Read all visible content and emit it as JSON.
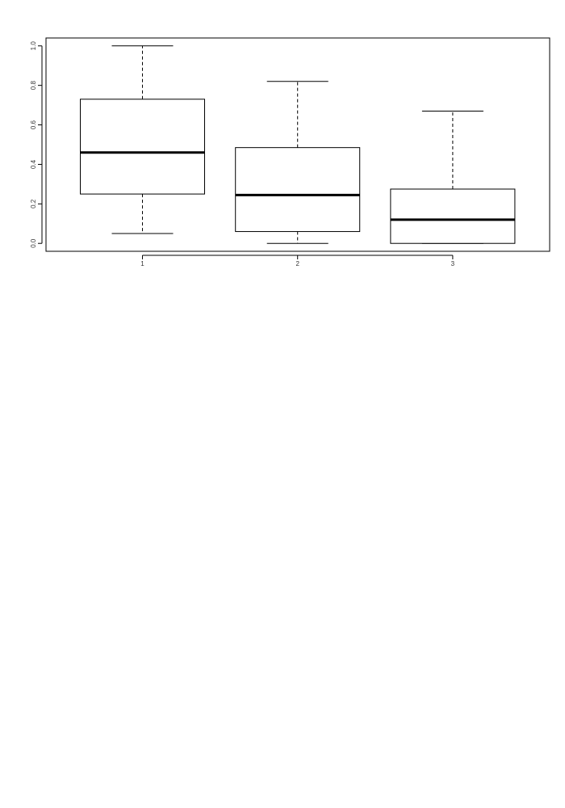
{
  "chart_data": {
    "type": "boxplot",
    "title": "",
    "xlabel": "",
    "ylabel": "",
    "ylim": [
      -0.04,
      1.04
    ],
    "grid": false,
    "legend": "none",
    "categories": [
      "1",
      "2",
      "3"
    ],
    "y_ticks": [
      "0.0",
      "0.2",
      "0.4",
      "0.6",
      "0.8",
      "1.0"
    ],
    "boxes": [
      {
        "label": "1",
        "whisker_low": 0.05,
        "q1": 0.25,
        "median": 0.46,
        "q3": 0.73,
        "whisker_high": 1.0
      },
      {
        "label": "2",
        "whisker_low": 0.0,
        "q1": 0.06,
        "median": 0.245,
        "q3": 0.485,
        "whisker_high": 0.82
      },
      {
        "label": "3",
        "whisker_low": 0.0,
        "q1": 0.0,
        "median": 0.12,
        "q3": 0.275,
        "whisker_high": 0.67
      }
    ],
    "colors": {
      "line": "#000000",
      "box_fill": "#ffffff"
    }
  }
}
